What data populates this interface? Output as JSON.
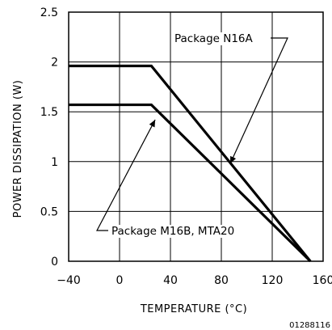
{
  "chart_data": {
    "type": "line",
    "xlabel": "TEMPERATURE (°C)",
    "ylabel": "POWER DISSIPATION (W)",
    "xlim": [
      -40,
      160
    ],
    "ylim": [
      0,
      2.5
    ],
    "xticks": [
      -40,
      0,
      40,
      80,
      120,
      160
    ],
    "xtick_labels": [
      "−40",
      "0",
      "40",
      "80",
      "120",
      "160"
    ],
    "yticks": [
      0,
      0.5,
      1,
      1.5,
      2,
      2.5
    ],
    "ytick_labels": [
      "0",
      "0.5",
      "1",
      "1.5",
      "2",
      "2.5"
    ],
    "grid": true,
    "series": [
      {
        "name": "Package N16A",
        "x": [
          -40,
          25,
          150
        ],
        "y": [
          1.96,
          1.96,
          0
        ]
      },
      {
        "name": "Package M16B, MTA20",
        "x": [
          -40,
          25,
          150
        ],
        "y": [
          1.57,
          1.57,
          0
        ]
      }
    ],
    "annotations": [
      {
        "text": "Package N16A",
        "points_to": {
          "x": 87,
          "y": 0.98
        }
      },
      {
        "text": "Package M16B, MTA20",
        "points_to": {
          "x": 28,
          "y": 1.42
        }
      }
    ],
    "figure_code": "01288116"
  }
}
